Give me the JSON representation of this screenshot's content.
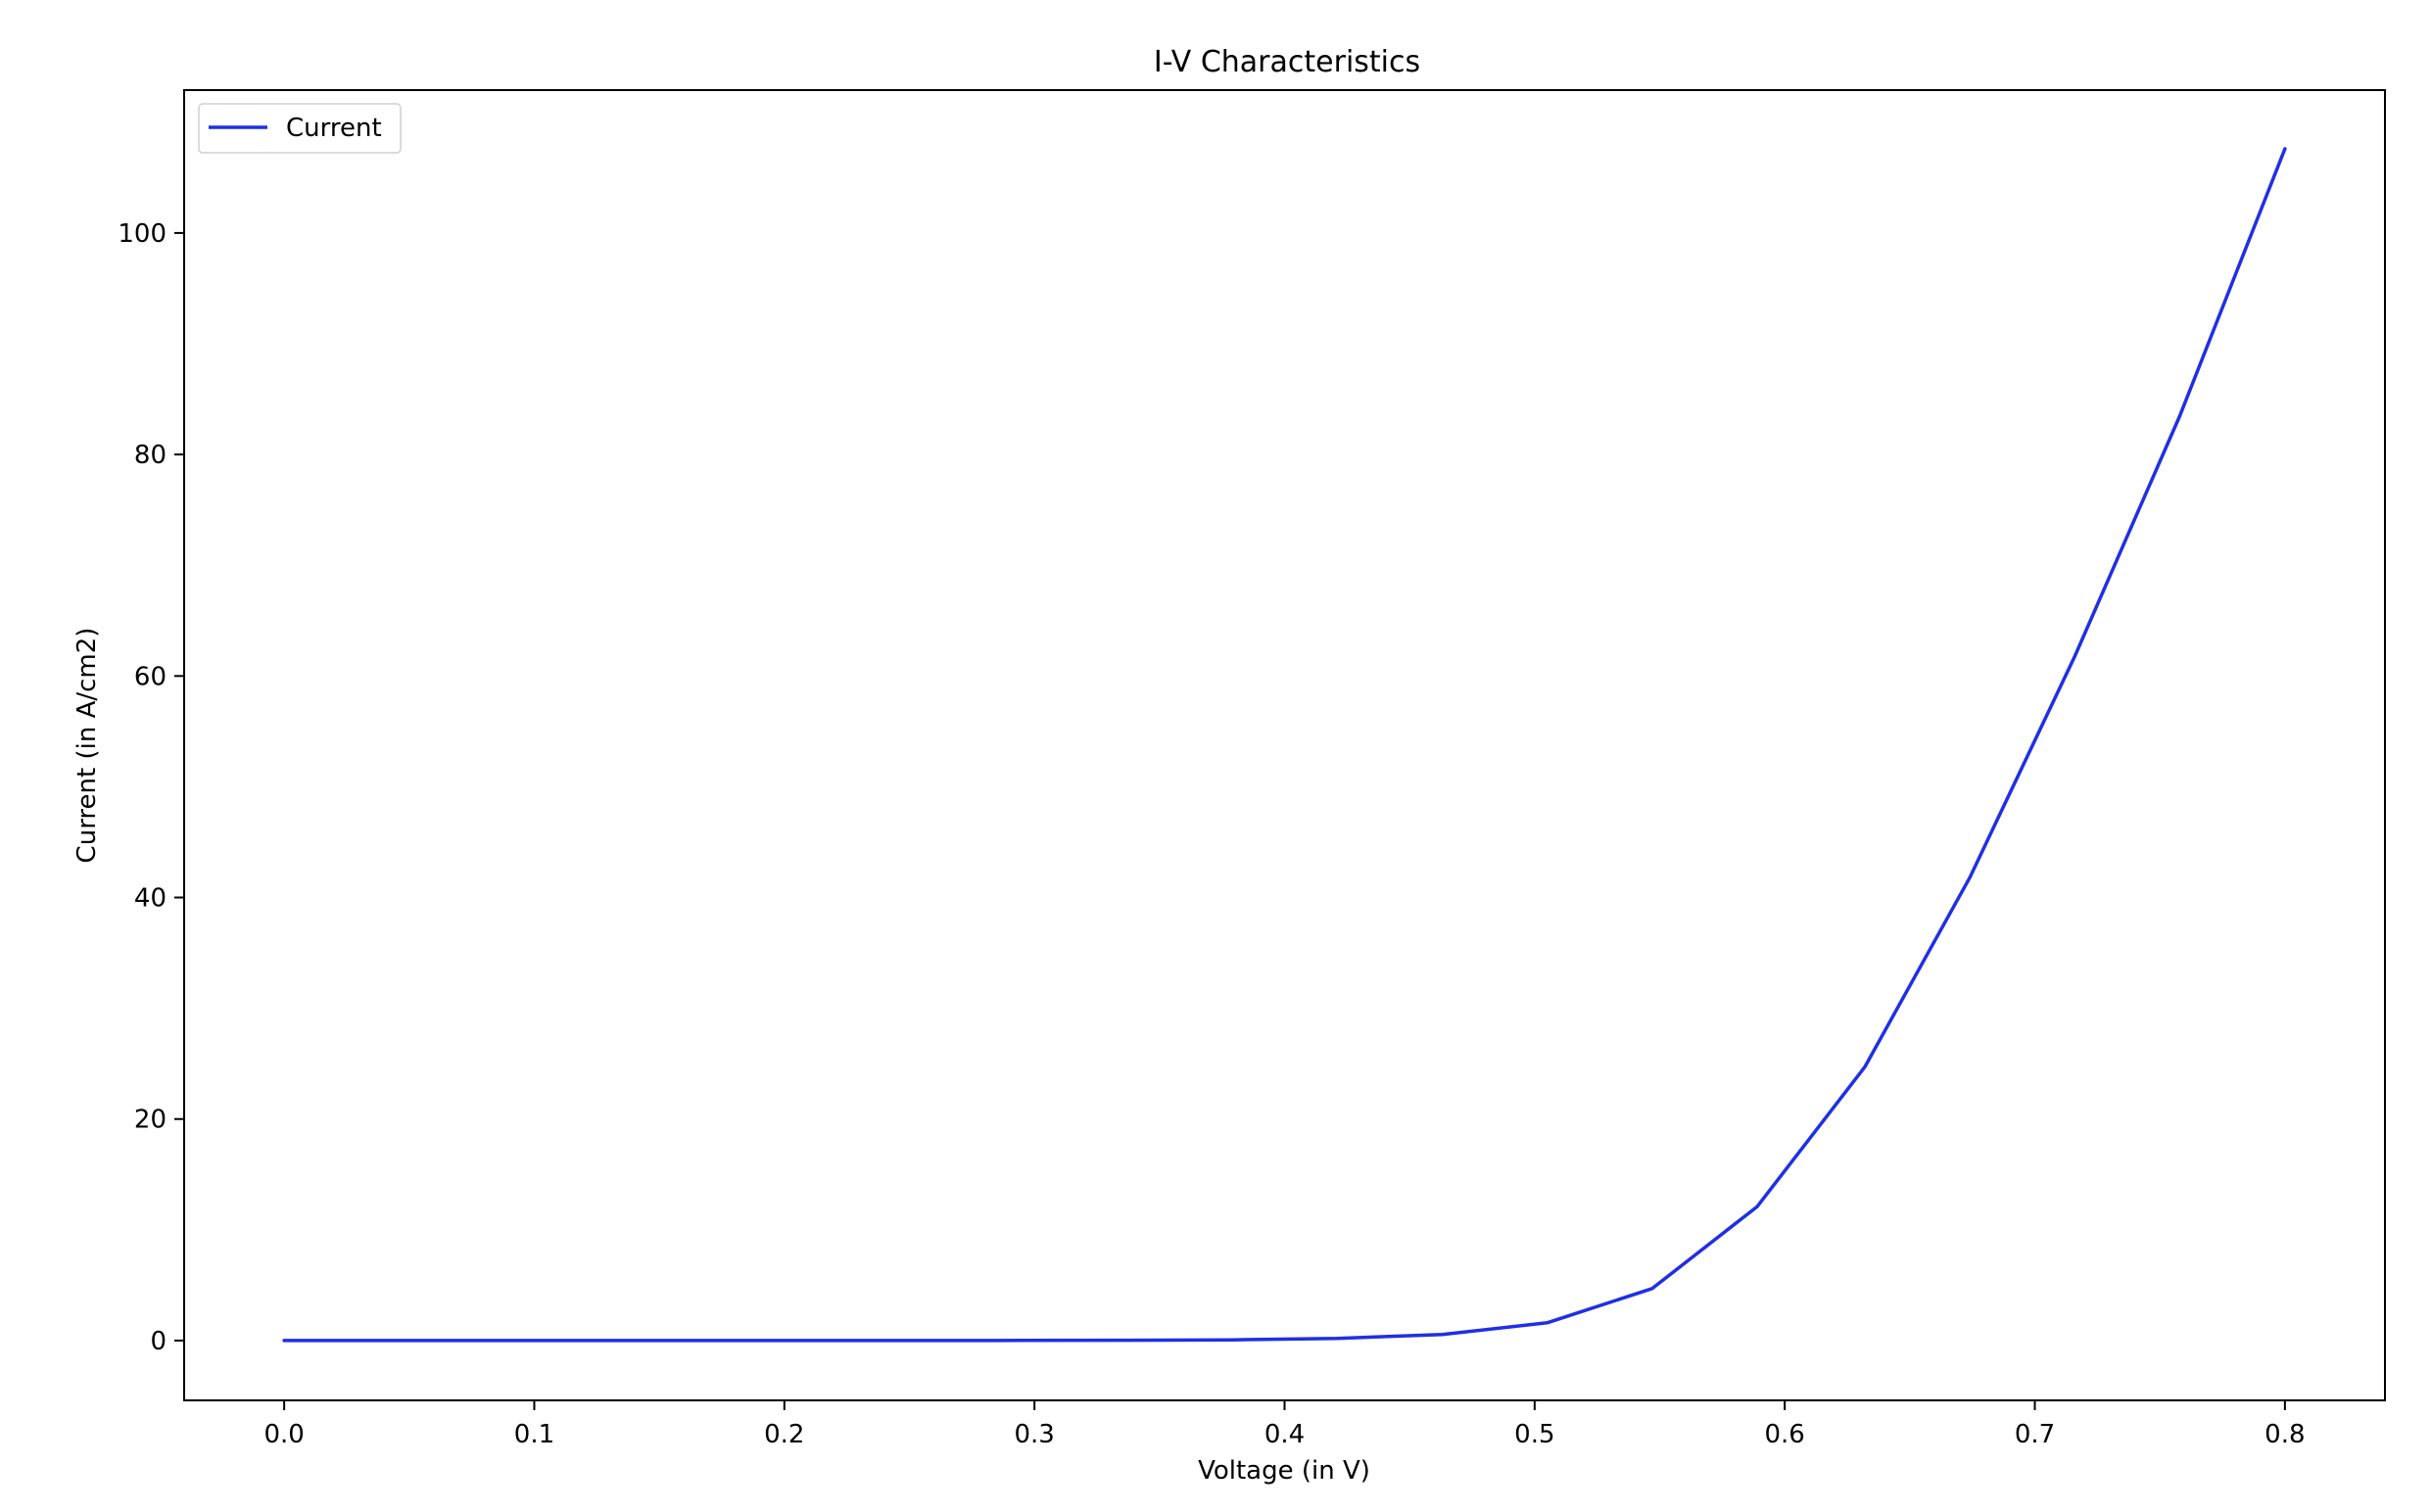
{
  "chart_data": {
    "type": "line",
    "title": "I-V Characteristics",
    "xlabel": "Voltage (in V)",
    "ylabel": "Current (in A/cm2)",
    "xlim": [
      -0.04,
      0.84
    ],
    "ylim": [
      -5.4,
      112.9
    ],
    "xticks": [
      0.0,
      0.1,
      0.2,
      0.3,
      0.4,
      0.5,
      0.6,
      0.7,
      0.8
    ],
    "xtick_labels": [
      "0.0",
      "0.1",
      "0.2",
      "0.3",
      "0.4",
      "0.5",
      "0.6",
      "0.7",
      "0.8"
    ],
    "yticks": [
      0,
      20,
      40,
      60,
      80,
      100
    ],
    "ytick_labels": [
      "0",
      "20",
      "40",
      "60",
      "80",
      "100"
    ],
    "grid": false,
    "legend_position": "top-left",
    "series": [
      {
        "name": "Current",
        "color": "#1f2fe6",
        "x": [
          0.0,
          0.042,
          0.084,
          0.126,
          0.168,
          0.211,
          0.253,
          0.295,
          0.337,
          0.379,
          0.421,
          0.463,
          0.505,
          0.547,
          0.589,
          0.632,
          0.674,
          0.716,
          0.758,
          0.8
        ],
        "y": [
          0.0,
          0.0,
          0.0,
          0.0,
          0.0,
          0.0,
          0.0,
          0.01,
          0.03,
          0.06,
          0.2,
          0.55,
          1.6,
          4.7,
          12.1,
          24.7,
          41.8,
          61.8,
          83.5,
          107.6
        ]
      }
    ]
  }
}
